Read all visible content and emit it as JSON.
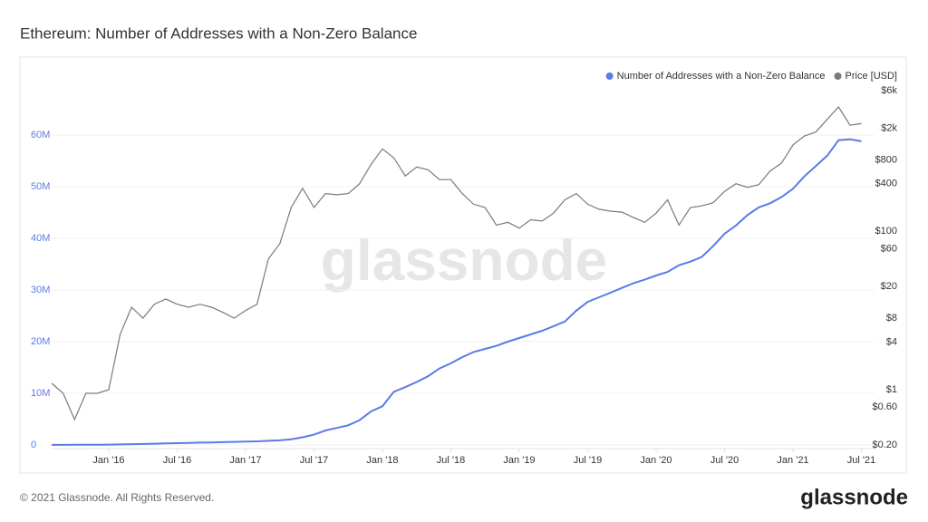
{
  "chart_data": {
    "type": "line",
    "title": "Ethereum: Number of Addresses with a Non-Zero Balance",
    "watermark": "glassnode",
    "x": [
      "2015-08",
      "2015-09",
      "2015-10",
      "2015-11",
      "2015-12",
      "2016-01",
      "2016-02",
      "2016-03",
      "2016-04",
      "2016-05",
      "2016-06",
      "2016-07",
      "2016-08",
      "2016-09",
      "2016-10",
      "2016-11",
      "2016-12",
      "2017-01",
      "2017-02",
      "2017-03",
      "2017-04",
      "2017-05",
      "2017-06",
      "2017-07",
      "2017-08",
      "2017-09",
      "2017-10",
      "2017-11",
      "2017-12",
      "2018-01",
      "2018-02",
      "2018-03",
      "2018-04",
      "2018-05",
      "2018-06",
      "2018-07",
      "2018-08",
      "2018-09",
      "2018-10",
      "2018-11",
      "2018-12",
      "2019-01",
      "2019-02",
      "2019-03",
      "2019-04",
      "2019-05",
      "2019-06",
      "2019-07",
      "2019-08",
      "2019-09",
      "2019-10",
      "2019-11",
      "2019-12",
      "2020-01",
      "2020-02",
      "2020-03",
      "2020-04",
      "2020-05",
      "2020-06",
      "2020-07",
      "2020-08",
      "2020-09",
      "2020-10",
      "2020-11",
      "2020-12",
      "2021-01",
      "2021-02",
      "2021-03",
      "2021-04",
      "2021-05",
      "2021-06",
      "2021-07"
    ],
    "series": [
      {
        "name": "Number of Addresses with a Non-Zero Balance",
        "color": "#5b7be6",
        "axis": "y",
        "values": [
          10000,
          20000,
          30000,
          40000,
          50000,
          70000,
          100000,
          150000,
          200000,
          250000,
          300000,
          350000,
          400000,
          450000,
          500000,
          550000,
          600000,
          650000,
          700000,
          800000,
          900000,
          1100000,
          1500000,
          2000000,
          2800000,
          3300000,
          3800000,
          4800000,
          6500000,
          7500000,
          10300000,
          11200000,
          12200000,
          13300000,
          14800000,
          15800000,
          17000000,
          18000000,
          18600000,
          19200000,
          20000000,
          20700000,
          21400000,
          22100000,
          23000000,
          23900000,
          26000000,
          27700000,
          28600000,
          29500000,
          30400000,
          31300000,
          32000000,
          32800000,
          33500000,
          34800000,
          35500000,
          36400000,
          38500000,
          40900000,
          42500000,
          44500000,
          46000000,
          46800000,
          48000000,
          49600000,
          52000000,
          54000000,
          56000000,
          59000000,
          59200000,
          58800000
        ]
      },
      {
        "name": "Price [USD]",
        "color": "#7a7a7a",
        "axis": "y2",
        "values": [
          1.2,
          0.9,
          0.42,
          0.9,
          0.9,
          1.0,
          5,
          11,
          8,
          12,
          14,
          12,
          11,
          12,
          11,
          9.5,
          8,
          10,
          12,
          45,
          70,
          200,
          350,
          200,
          300,
          290,
          300,
          400,
          700,
          1100,
          850,
          500,
          650,
          600,
          450,
          450,
          300,
          220,
          200,
          120,
          130,
          110,
          140,
          135,
          170,
          250,
          300,
          220,
          190,
          180,
          175,
          150,
          130,
          170,
          250,
          120,
          200,
          210,
          230,
          320,
          400,
          360,
          390,
          580,
          730,
          1237,
          1600,
          1800,
          2600,
          3730,
          2200,
          2300
        ]
      }
    ],
    "xticks": [
      {
        "value": "2016-01",
        "label": "Jan '16"
      },
      {
        "value": "2016-07",
        "label": "Jul '16"
      },
      {
        "value": "2017-01",
        "label": "Jan '17"
      },
      {
        "value": "2017-07",
        "label": "Jul '17"
      },
      {
        "value": "2018-01",
        "label": "Jan '18"
      },
      {
        "value": "2018-07",
        "label": "Jul '18"
      },
      {
        "value": "2019-01",
        "label": "Jan '19"
      },
      {
        "value": "2019-07",
        "label": "Jul '19"
      },
      {
        "value": "2020-01",
        "label": "Jan '20"
      },
      {
        "value": "2020-07",
        "label": "Jul '20"
      },
      {
        "value": "2021-01",
        "label": "Jan '21"
      },
      {
        "value": "2021-07",
        "label": "Jul '21"
      }
    ],
    "ylim": [
      0,
      68600000
    ],
    "yticks": [
      0,
      {
        "value": 10000000,
        "label": "10M"
      },
      {
        "value": 20000000,
        "label": "20M"
      },
      {
        "value": 30000000,
        "label": "30M"
      },
      {
        "value": 40000000,
        "label": "40M"
      },
      {
        "value": 50000000,
        "label": "50M"
      },
      {
        "value": 60000000,
        "label": "60M"
      }
    ],
    "y2lim": [
      0.2,
      6000
    ],
    "y2scale": "log",
    "y2ticks": [
      {
        "value": 0.2,
        "label": "$0.20"
      },
      {
        "value": 0.6,
        "label": "$0.60"
      },
      {
        "value": 1,
        "label": "$1"
      },
      {
        "value": 4,
        "label": "$4"
      },
      {
        "value": 8,
        "label": "$8"
      },
      {
        "value": 20,
        "label": "$20"
      },
      {
        "value": 60,
        "label": "$60"
      },
      {
        "value": 100,
        "label": "$100"
      },
      {
        "value": 400,
        "label": "$400"
      },
      {
        "value": 800,
        "label": "$800"
      },
      {
        "value": 2000,
        "label": "$2k"
      },
      {
        "value": 6000,
        "label": "$6k"
      }
    ],
    "grid": true,
    "legend": "top-right"
  },
  "footer": {
    "copyright": "© 2021 Glassnode. All Rights Reserved.",
    "logo": "glassnode"
  }
}
